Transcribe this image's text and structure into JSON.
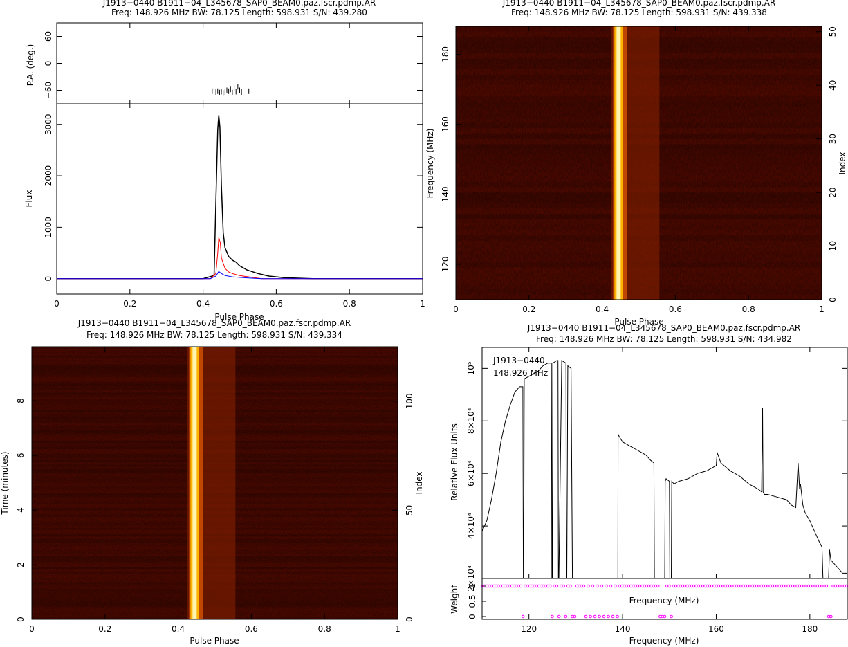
{
  "chart_data": [
    {
      "type": "line",
      "panel": "profile",
      "title": "J1913−0440  B1911−04_L345678_SAP0_BEAM0.paz.fscr.pdmp.AR",
      "subtitle": "Freq: 148.926 MHz  BW: 78.125  Length: 598.931  S/N: 439.280",
      "xlabel": "Pulse Phase",
      "ylabel": "Flux",
      "pa_ylabel": "P.A. (deg.)",
      "xlim": [
        0,
        1
      ],
      "ylim": [
        -300,
        3400
      ],
      "pa_ylim": [
        -90,
        90
      ],
      "x_ticks": [
        "0",
        "0.2",
        "0.4",
        "0.6",
        "0.8",
        "1"
      ],
      "x_tick_values": [
        0,
        0.2,
        0.4,
        0.6,
        0.8,
        1
      ],
      "y_ticks": [
        "0",
        "1000",
        "2000",
        "3000"
      ],
      "y_tick_values": [
        0,
        1000,
        2000,
        3000
      ],
      "pa_ticks": [
        "60",
        "0",
        "−60"
      ],
      "pa_tick_values": [
        60,
        0,
        -60
      ],
      "series": [
        {
          "color": "#000000",
          "x": [
            0,
            0.4,
            0.43,
            0.435,
            0.44,
            0.443,
            0.446,
            0.45,
            0.455,
            0.46,
            0.47,
            0.48,
            0.49,
            0.5,
            0.52,
            0.55,
            0.58,
            0.62,
            0.7,
            1
          ],
          "values": [
            0,
            0,
            60,
            1500,
            2900,
            3180,
            2950,
            1800,
            900,
            600,
            430,
            360,
            320,
            250,
            170,
            100,
            50,
            20,
            0,
            0
          ]
        },
        {
          "color": "#ff0000",
          "x": [
            0,
            0.42,
            0.435,
            0.44,
            0.443,
            0.447,
            0.45,
            0.46,
            0.47,
            0.48,
            0.5,
            0.53,
            0.56,
            1
          ],
          "values": [
            0,
            0,
            100,
            500,
            800,
            700,
            400,
            200,
            130,
            100,
            60,
            30,
            0,
            0
          ]
        },
        {
          "color": "#0000ff",
          "x": [
            0,
            0.42,
            0.435,
            0.443,
            0.45,
            0.46,
            0.48,
            0.52,
            0.56,
            1
          ],
          "values": [
            0,
            0,
            50,
            140,
            100,
            60,
            35,
            15,
            0,
            0
          ]
        }
      ],
      "pa_points": {
        "x": [
          0.425,
          0.43,
          0.435,
          0.44,
          0.445,
          0.45,
          0.455,
          0.46,
          0.465,
          0.47,
          0.475,
          0.48,
          0.485,
          0.49,
          0.495,
          0.5,
          0.505,
          0.525
        ],
        "values": [
          -62,
          -63,
          -64,
          -62,
          -65,
          -63,
          -66,
          -64,
          -60,
          -62,
          -58,
          -65,
          -55,
          -63,
          -52,
          -60,
          -64,
          -62
        ]
      }
    },
    {
      "type": "heatmap",
      "panel": "phase-frequency",
      "title": "J1913−0440  B1911−04_L345678_SAP0_BEAM0.paz.fscr.pdmp.AR",
      "subtitle": "Freq: 148.926 MHz  BW: 78.125  Length: 598.931  S/N: 439.338",
      "xlabel": "Pulse Phase",
      "ylabel": "Frequency (MHz)",
      "y2label": "Index",
      "xlim": [
        0,
        1
      ],
      "ylim": [
        109.9,
        188.0
      ],
      "y2lim": [
        0,
        51
      ],
      "colormap": "heat",
      "pulse_phase": 0.443,
      "x_ticks": [
        "0",
        "0.2",
        "0.4",
        "0.6",
        "0.8",
        "1"
      ],
      "x_tick_values": [
        0,
        0.2,
        0.4,
        0.6,
        0.8,
        1
      ],
      "y_ticks": [
        "120",
        "140",
        "160",
        "180"
      ],
      "y_tick_values": [
        120,
        140,
        160,
        180
      ],
      "y2_ticks": [
        "0",
        "10",
        "20",
        "30",
        "40",
        "50"
      ],
      "y2_tick_values": [
        0,
        10,
        20,
        30,
        40,
        50
      ]
    },
    {
      "type": "heatmap",
      "panel": "phase-time",
      "title": "J1913−0440  B1911−04_L345678_SAP0_BEAM0.paz.fscr.pdmp.AR",
      "subtitle": "Freq: 148.926 MHz  BW: 78.125  Length: 598.931  S/N: 439.334",
      "xlabel": "Pulse Phase",
      "ylabel": "Time (minutes)",
      "y2label": "Index",
      "xlim": [
        0,
        1
      ],
      "ylim": [
        0,
        9.98
      ],
      "y2lim": [
        0,
        125
      ],
      "colormap": "heat",
      "pulse_phase": 0.443,
      "x_ticks": [
        "0",
        "0.2",
        "0.4",
        "0.6",
        "0.8",
        "1"
      ],
      "x_tick_values": [
        0,
        0.2,
        0.4,
        0.6,
        0.8,
        1
      ],
      "y_ticks": [
        "0",
        "2",
        "4",
        "6",
        "8"
      ],
      "y_tick_values": [
        0,
        2,
        4,
        6,
        8
      ],
      "y2_ticks": [
        "0",
        "50",
        "100"
      ],
      "y2_tick_values": [
        0,
        50,
        100
      ]
    },
    {
      "type": "line",
      "panel": "bandpass",
      "title": "J1913−0440  B1911−04_L345678_SAP0_BEAM0.paz.fscr.pdmp.AR",
      "subtitle": "Freq: 148.926 MHz  BW: 78.125  Length: 598.931  S/N: 434.982",
      "xlabel": "Frequency (MHz)",
      "ylabel": "Relative Flux Units",
      "weight_ylabel": "Weight",
      "weight_xlabel": "Frequency (MHz)",
      "annotation": [
        "J1913−0440",
        "148.926 MHz"
      ],
      "xlim": [
        110,
        188
      ],
      "ylim": [
        20000,
        108000
      ],
      "weight_ylim": [
        0,
        1.25
      ],
      "x_ticks": [
        "120",
        "140",
        "160",
        "180"
      ],
      "x_tick_values": [
        120,
        140,
        160,
        180
      ],
      "y_ticks": [
        "2×10⁴",
        "4×10⁴",
        "6×10⁴",
        "8×10⁴",
        "10⁵"
      ],
      "y_tick_values": [
        20000,
        40000,
        60000,
        80000,
        100000
      ],
      "weight_ticks": [
        "0",
        "0.5",
        "1"
      ],
      "weight_tick_values": [
        0,
        0.5,
        1
      ],
      "series": [
        {
          "color": "#000000",
          "x": [
            110,
            111,
            112,
            113,
            114,
            115,
            116,
            117,
            118,
            118.7,
            118.8,
            118.9,
            119,
            120,
            121,
            122,
            123,
            124,
            124.8,
            124.9,
            125.0,
            125.1,
            126,
            126.2,
            126.3,
            126.4,
            127,
            127.9,
            128.0,
            128.1,
            128.3,
            129,
            129.3,
            129.4,
            130,
            139,
            139.05,
            139.3,
            140,
            141,
            142,
            143,
            144,
            145,
            146,
            146.7,
            146.8,
            147,
            149,
            149.1,
            149.3,
            150,
            150.1,
            150.2,
            150.4,
            150.5,
            151,
            152,
            154,
            156,
            158,
            160,
            160.2,
            161,
            163,
            165,
            167,
            169,
            169.7,
            169.9,
            170.0,
            170.3,
            171,
            173,
            175,
            176,
            177,
            177.5,
            177.8,
            178,
            178.5,
            179,
            180,
            181,
            182,
            182.6,
            182.8,
            184,
            184.2,
            184.5,
            185,
            186,
            187,
            188
          ],
          "values": [
            38000,
            42000,
            50000,
            60000,
            72000,
            80000,
            86000,
            91000,
            93000,
            93000,
            20000,
            20000,
            96000,
            97000,
            98000,
            99000,
            101000,
            102000,
            102000,
            20000,
            20000,
            102000,
            103000,
            103000,
            20000,
            20000,
            103000,
            102000,
            20000,
            20000,
            101000,
            100000,
            20000,
            20000,
            20000,
            20000,
            75000,
            74000,
            72000,
            71000,
            70000,
            69000,
            68000,
            67000,
            65000,
            64000,
            20000,
            20000,
            20000,
            57000,
            58000,
            57000,
            20000,
            20000,
            20000,
            57000,
            56000,
            57000,
            58000,
            60000,
            61000,
            63000,
            68000,
            64000,
            61000,
            59000,
            56000,
            54000,
            53000,
            85000,
            53000,
            52000,
            52000,
            51000,
            50000,
            48000,
            47000,
            64000,
            54000,
            56000,
            48000,
            45000,
            42000,
            38000,
            34000,
            32000,
            20000,
            20000,
            31000,
            27000,
            26000,
            24000,
            22000,
            22000
          ]
        }
      ],
      "weights_zero_channels": [
        118.8,
        124.9,
        125.7,
        126.4,
        128.0,
        129.5,
        130,
        131,
        132,
        133,
        134,
        135,
        136,
        137,
        138,
        139,
        146.8,
        147.3,
        147.8,
        148.3,
        148.8,
        150.2,
        182.8,
        183.3,
        183.8,
        184.3
      ],
      "weights_unity_channels_note": "all remaining channels",
      "weight_color": "#ff00ff"
    }
  ]
}
